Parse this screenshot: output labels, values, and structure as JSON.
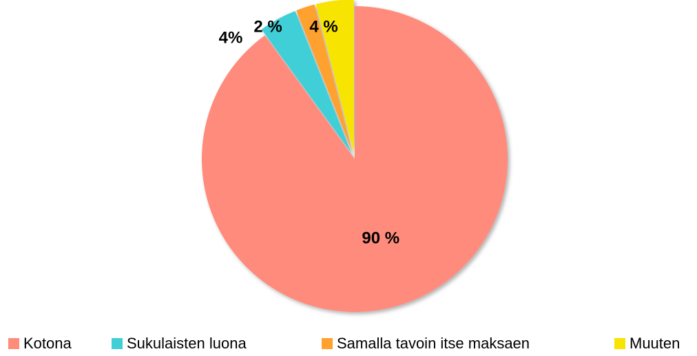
{
  "chart_data": {
    "type": "pie",
    "categories": [
      "Kotona",
      "Sukulaisten luona",
      "Samalla tavoin itse maksaen",
      "Muuten"
    ],
    "values": [
      90,
      4,
      2,
      4
    ],
    "value_labels": [
      "90 %",
      "4%",
      "2 %",
      "4 %"
    ],
    "colors": [
      "#ff8b7b",
      "#41cfd6",
      "#ffa12e",
      "#f7e400"
    ]
  }
}
